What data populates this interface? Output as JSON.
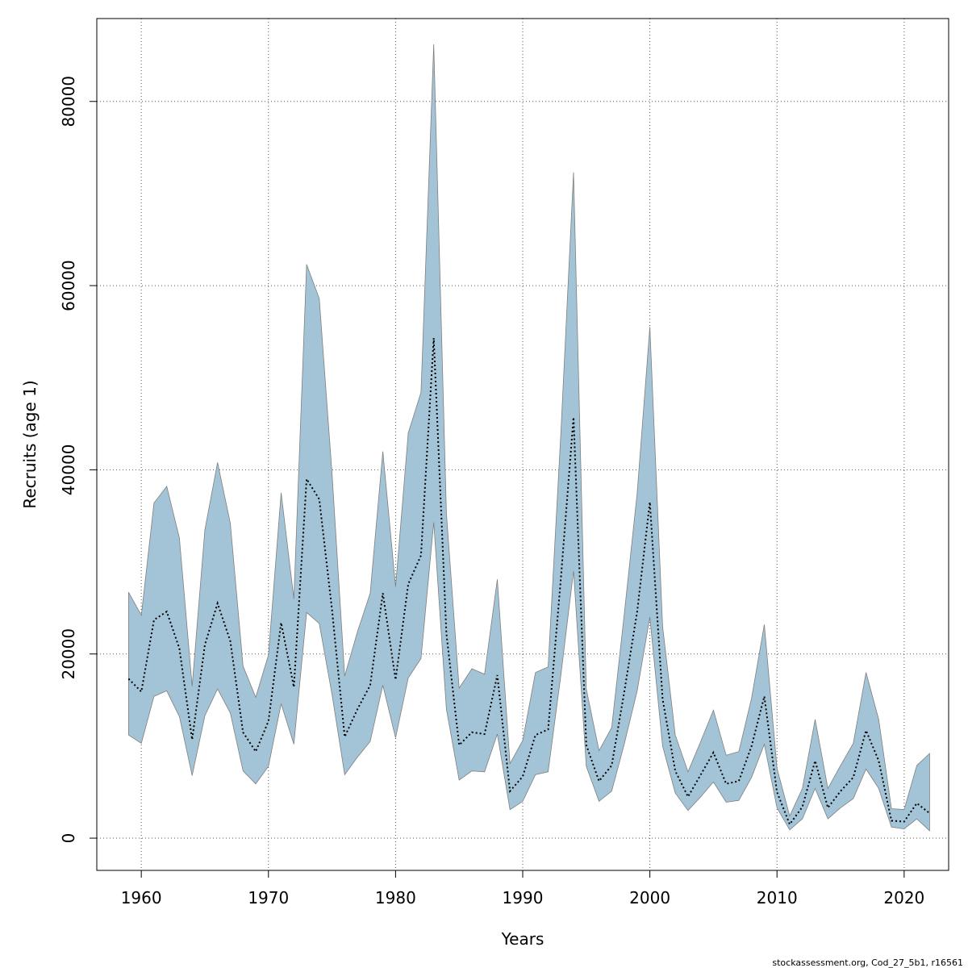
{
  "chart_data": {
    "type": "area",
    "title": "",
    "xlabel": "Years",
    "ylabel": "Recruits (age 1)",
    "xlim": [
      1956.5,
      2023.5
    ],
    "ylim": [
      -3500,
      89000
    ],
    "grid": true,
    "x_ticks": [
      1960,
      1970,
      1980,
      1990,
      2000,
      2010,
      2020
    ],
    "y_ticks": [
      0,
      20000,
      40000,
      60000,
      80000
    ],
    "x_tick_labels": [
      "1960",
      "1970",
      "1980",
      "1990",
      "2000",
      "2010",
      "2020"
    ],
    "y_tick_labels": [
      "0",
      "20000",
      "40000",
      "60000",
      "80000"
    ],
    "band_color": "#a3c4d6",
    "band_edge_color": "#7f7f7f",
    "line_color": "#000000",
    "line_style": "dotted",
    "x": [
      1959,
      1960,
      1961,
      1962,
      1963,
      1964,
      1965,
      1966,
      1967,
      1968,
      1969,
      1970,
      1971,
      1972,
      1973,
      1974,
      1975,
      1976,
      1977,
      1978,
      1979,
      1980,
      1981,
      1982,
      1983,
      1984,
      1985,
      1986,
      1987,
      1988,
      1989,
      1990,
      1991,
      1992,
      1993,
      1994,
      1995,
      1996,
      1997,
      1998,
      1999,
      2000,
      2001,
      2002,
      2003,
      2004,
      2005,
      2006,
      2007,
      2008,
      2009,
      2010,
      2011,
      2012,
      2013,
      2014,
      2015,
      2016,
      2017,
      2018,
      2019,
      2020,
      2021,
      2022
    ],
    "series": [
      {
        "name": "upper",
        "values": [
          26700,
          24200,
          36400,
          38200,
          32600,
          16500,
          33500,
          40800,
          34200,
          18700,
          15300,
          19900,
          37500,
          26000,
          62300,
          58600,
          39600,
          17600,
          22400,
          26600,
          42000,
          27300,
          44000,
          48400,
          86200,
          35300,
          16300,
          18400,
          17800,
          28100,
          8100,
          10600,
          18000,
          18600,
          44000,
          72300,
          16200,
          9500,
          12000,
          24500,
          37500,
          55500,
          23000,
          11200,
          7200,
          10500,
          13900,
          9000,
          9400,
          15200,
          23200,
          7600,
          2400,
          5400,
          12900,
          5400,
          7900,
          10300,
          18000,
          12900,
          3200,
          3100,
          7900,
          9200
        ]
      },
      {
        "name": "estimate",
        "values": [
          17300,
          15900,
          23700,
          24600,
          20600,
          10700,
          21000,
          25500,
          21400,
          11500,
          9400,
          12700,
          23400,
          16400,
          39000,
          36800,
          24800,
          11000,
          14000,
          16600,
          26600,
          17200,
          27600,
          30700,
          54300,
          22200,
          10100,
          11500,
          11300,
          17700,
          5100,
          6700,
          11200,
          11800,
          28200,
          45700,
          10100,
          6200,
          7900,
          16000,
          24600,
          36500,
          15100,
          7300,
          4500,
          6900,
          9300,
          5900,
          6200,
          10000,
          15400,
          5000,
          1500,
          3400,
          8400,
          3300,
          5100,
          6600,
          11700,
          8400,
          1900,
          1800,
          3800,
          2700
        ]
      },
      {
        "name": "lower",
        "values": [
          11200,
          10300,
          15400,
          16000,
          13200,
          6800,
          13300,
          16200,
          13600,
          7300,
          5900,
          7800,
          14600,
          10200,
          24500,
          23300,
          15600,
          6900,
          8800,
          10500,
          16600,
          10900,
          17400,
          19500,
          34300,
          14000,
          6300,
          7300,
          7200,
          11300,
          3100,
          4000,
          6900,
          7200,
          17700,
          29000,
          7800,
          4000,
          5100,
          10300,
          16000,
          24000,
          10000,
          4900,
          3000,
          4500,
          6100,
          3900,
          4100,
          6600,
          10200,
          3300,
          900,
          2100,
          5400,
          2100,
          3300,
          4300,
          7500,
          5400,
          1200,
          1000,
          2100,
          800
        ]
      }
    ]
  },
  "footer": {
    "source_note": "stockassessment.org, Cod_27_5b1, r16561"
  }
}
